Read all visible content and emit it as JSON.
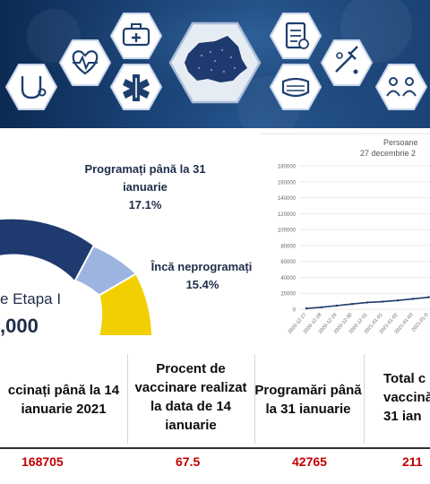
{
  "banner": {
    "icons": [
      "stethoscope-icon",
      "heart-rate-icon",
      "medical-kit-icon",
      "medical-star-icon",
      "romania-map-icon",
      "clipboard-icon",
      "mask-icon",
      "vaccine-icon",
      "people-distance-icon"
    ],
    "colors": {
      "bg_dark": "#0c2a52",
      "bg_mid": "#25548d",
      "hex_fill": "#ffffff",
      "icon": "#1e3f6e"
    }
  },
  "donut": {
    "label_programati": "Programați până la 31\nianuarie",
    "pct_programati": "17.1%",
    "label_neprogramati": "Încă neprogramați",
    "pct_neprogramati": "15.4%",
    "label_etapa": "e Etapa I",
    "total": ",000",
    "colors": {
      "vaccinati": "#1f3a6e",
      "programati": "#9db3e0",
      "neprogramati": "#f2cf00"
    }
  },
  "line_chart": {
    "title": "Persoane",
    "subtitle": "27 decembrie 2",
    "color": "#1f3a6e"
  },
  "chart_data": {
    "type": "line",
    "title": "Persoane",
    "subtitle": "27 decembrie 2",
    "x": [
      "2020-12-27",
      "2020-12-28",
      "2020-12-29",
      "2020-12-30",
      "2020-12-31",
      "2021-01-01",
      "2021-01-02",
      "2021-01-03",
      "2021-01-04",
      "2021-01-05"
    ],
    "values": [
      1000,
      2500,
      4500,
      6500,
      8500,
      9500,
      11000,
      13000,
      15000,
      18000
    ],
    "ylim": [
      0,
      180000
    ],
    "yticks": [
      "0",
      "20000",
      "40000",
      "60000",
      "80000",
      "100000",
      "120000",
      "140000",
      "160000",
      "180000"
    ],
    "xticks": [
      "2020-12-27",
      "2020-12-28",
      "2020-12-29",
      "2020-12-30",
      "2020-12-31",
      "2021-01-01",
      "2021-01-02",
      "2021-01-03",
      "2021-01-0"
    ],
    "grid": true
  },
  "table": {
    "headers": [
      "ccinați până la 14\nianuarie 2021",
      "Procent de\nvaccinare realizat\nla data de 14\nianuarie",
      "Programări până\nla 31 ianuarie",
      "Total c\nvaccinăr\n31 ian"
    ],
    "values": [
      "168705",
      "67.5",
      "42765",
      "211"
    ]
  }
}
